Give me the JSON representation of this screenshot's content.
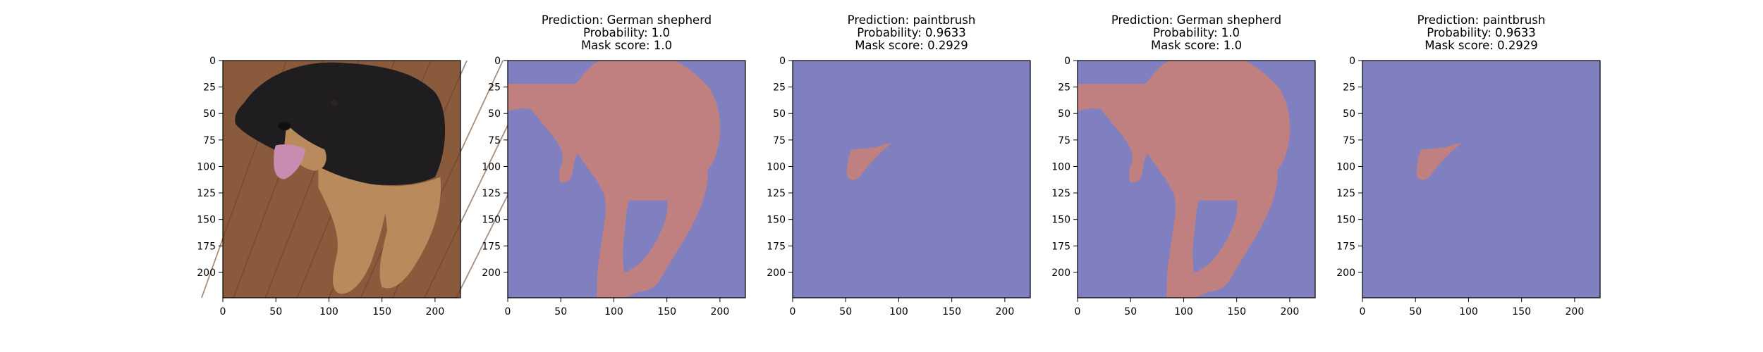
{
  "colors": {
    "background_class": "#8080c0",
    "foreground_class": "#c08080",
    "axes_edge": "#000000",
    "floor": "#8a5a3c",
    "dog_dark": "#1f1d20",
    "dog_tan": "#b98a5c",
    "tongue": "#c98bb0"
  },
  "axes": {
    "xlim": [
      0,
      224
    ],
    "ylim": [
      224,
      0
    ],
    "xticks": [
      "0",
      "50",
      "100",
      "150",
      "200"
    ],
    "yticks": [
      "0",
      "25",
      "50",
      "75",
      "100",
      "125",
      "150",
      "175",
      "200"
    ]
  },
  "panels": [
    {
      "kind": "photo",
      "title": [
        "",
        "",
        ""
      ],
      "image": "dog-photo"
    },
    {
      "kind": "mask",
      "title": [
        "Prediction: German shepherd",
        "Probability: 1.0",
        "Mask score: 1.0"
      ],
      "mask": "dog-body"
    },
    {
      "kind": "mask",
      "title": [
        "Prediction: paintbrush",
        "Probability: 0.9633",
        "Mask score: 0.2929"
      ],
      "mask": "tongue"
    },
    {
      "kind": "mask",
      "title": [
        "Prediction: German shepherd",
        "Probability: 1.0",
        "Mask score: 1.0"
      ],
      "mask": "dog-body"
    },
    {
      "kind": "mask",
      "title": [
        "Prediction: paintbrush",
        "Probability: 0.9633",
        "Mask score: 0.2929"
      ],
      "mask": "tongue"
    }
  ]
}
